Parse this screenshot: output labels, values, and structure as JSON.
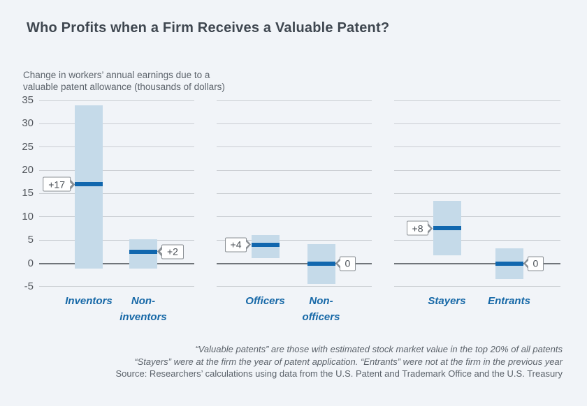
{
  "title": "Who Profits when a Firm Receives a Valuable Patent?",
  "chart_data": {
    "type": "range-bar",
    "title": "Who Profits when a Firm Receives a Valuable Patent?",
    "ylabel": "Change in workers’ annual earnings due to a valuable patent allowance (thousands of dollars)",
    "ylabel_lines": [
      "Change in workers’ annual earnings due to a",
      "valuable patent allowance (thousands of dollars)"
    ],
    "xlabel": "",
    "yticks": [
      35,
      30,
      25,
      20,
      15,
      10,
      5,
      0,
      -5
    ],
    "ylim": [
      -5,
      35
    ],
    "grid": true,
    "units": "thousands of dollars",
    "panels": [
      {
        "categories": [
          {
            "label": "Inventors",
            "label_lines": [
              "Inventors"
            ],
            "range_low": -1.2,
            "range_high": 34,
            "estimate": 17,
            "callout": "+17",
            "callout_side": "left"
          },
          {
            "label": "Non-inventors",
            "label_lines": [
              "Non-",
              "inventors"
            ],
            "range_low": -1.1,
            "range_high": 5.2,
            "estimate": 2.5,
            "callout": "+2",
            "callout_side": "right"
          }
        ]
      },
      {
        "categories": [
          {
            "label": "Officers",
            "label_lines": [
              "Officers"
            ],
            "range_low": 1.1,
            "range_high": 6.1,
            "estimate": 4,
            "callout": "+4",
            "callout_side": "left"
          },
          {
            "label": "Non-officers",
            "label_lines": [
              "Non-",
              "officers"
            ],
            "range_low": -4.5,
            "range_high": 4.1,
            "estimate": 0,
            "callout": "0",
            "callout_side": "right"
          }
        ]
      },
      {
        "categories": [
          {
            "label": "Stayers",
            "label_lines": [
              "Stayers"
            ],
            "range_low": 1.7,
            "range_high": 13.4,
            "estimate": 7.5,
            "callout": "+8",
            "callout_side": "left"
          },
          {
            "label": "Entrants",
            "label_lines": [
              "Entrants"
            ],
            "range_low": -3.4,
            "range_high": 3.2,
            "estimate": 0,
            "callout": "0",
            "callout_side": "right"
          }
        ]
      }
    ]
  },
  "footnotes": {
    "line1": "“Valuable patents” are those with estimated stock market value in the top 20% of all patents",
    "line2": "“Stayers” were at the firm the year of patent application. “Entrants” were not at the firm in the previous year",
    "line3": "Source: Researchers’ calculations using data from the U.S. Patent and Trademark Office and the U.S. Treasury"
  },
  "colors": {
    "background": "#f1f4f8",
    "band": "#c5dae9",
    "estimate_line": "#1167ae",
    "category_label": "#1668a7",
    "gridline": "#c9cdd2",
    "zero_line": "#70757a",
    "title_text": "#3f4750",
    "body_text": "#5c636b",
    "callout_border": "#8b9095"
  }
}
